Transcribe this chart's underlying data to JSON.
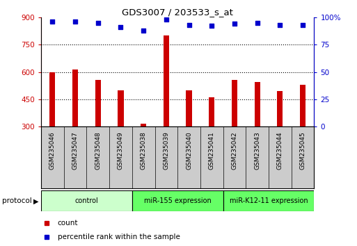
{
  "title": "GDS3007 / 203533_s_at",
  "samples": [
    "GSM235046",
    "GSM235047",
    "GSM235048",
    "GSM235049",
    "GSM235038",
    "GSM235039",
    "GSM235040",
    "GSM235041",
    "GSM235042",
    "GSM235043",
    "GSM235044",
    "GSM235045"
  ],
  "counts": [
    598,
    615,
    555,
    500,
    315,
    800,
    498,
    460,
    555,
    545,
    495,
    530
  ],
  "percentile_ranks": [
    96,
    96,
    95,
    91,
    88,
    98,
    93,
    92,
    94,
    95,
    93,
    93
  ],
  "bar_color": "#cc0000",
  "dot_color": "#0000cc",
  "ylim_left": [
    300,
    900
  ],
  "ylim_right": [
    0,
    100
  ],
  "yticks_left": [
    300,
    450,
    600,
    750,
    900
  ],
  "yticks_right": [
    0,
    25,
    50,
    75,
    100
  ],
  "grid_values": [
    450,
    600,
    750
  ],
  "groups": [
    {
      "label": "control",
      "start": 0,
      "end": 4,
      "color": "#ccffcc"
    },
    {
      "label": "miR-155 expression",
      "start": 4,
      "end": 8,
      "color": "#66ff66"
    },
    {
      "label": "miR-K12-11 expression",
      "start": 8,
      "end": 12,
      "color": "#66ff66"
    }
  ],
  "protocol_label": "protocol",
  "legend_items": [
    {
      "label": "count",
      "color": "#cc0000"
    },
    {
      "label": "percentile rank within the sample",
      "color": "#0000cc"
    }
  ],
  "background_color": "#ffffff",
  "bar_bottom": 300,
  "bar_width": 0.25
}
